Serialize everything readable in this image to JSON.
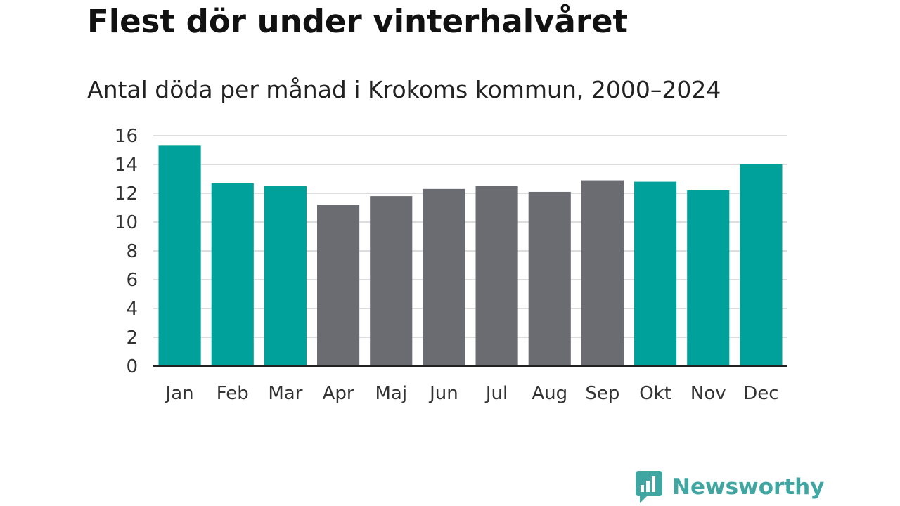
{
  "chart_data": {
    "type": "bar",
    "title": "Flest dör under vinterhalvåret",
    "subtitle": "Antal döda per månad i Krokoms kommun, 2000–2024",
    "xlabel": "",
    "ylabel": "",
    "ylim": [
      0,
      16
    ],
    "yticks": [
      0,
      2,
      4,
      6,
      8,
      10,
      12,
      14,
      16
    ],
    "grid": true,
    "categories": [
      "Jan",
      "Feb",
      "Mar",
      "Apr",
      "Maj",
      "Jun",
      "Jul",
      "Aug",
      "Sep",
      "Okt",
      "Nov",
      "Dec"
    ],
    "values": [
      15.3,
      12.7,
      12.5,
      11.2,
      11.8,
      12.3,
      12.5,
      12.1,
      12.9,
      12.8,
      12.2,
      14.0
    ],
    "highlight": [
      true,
      true,
      true,
      false,
      false,
      false,
      false,
      false,
      false,
      true,
      true,
      true
    ],
    "colors": {
      "highlight": "#00a19a",
      "other": "#6b6b72",
      "grid": "#dddddd",
      "axis": "#222222"
    }
  },
  "logo": {
    "text": "Newsworthy",
    "color": "#3fa6a1"
  }
}
